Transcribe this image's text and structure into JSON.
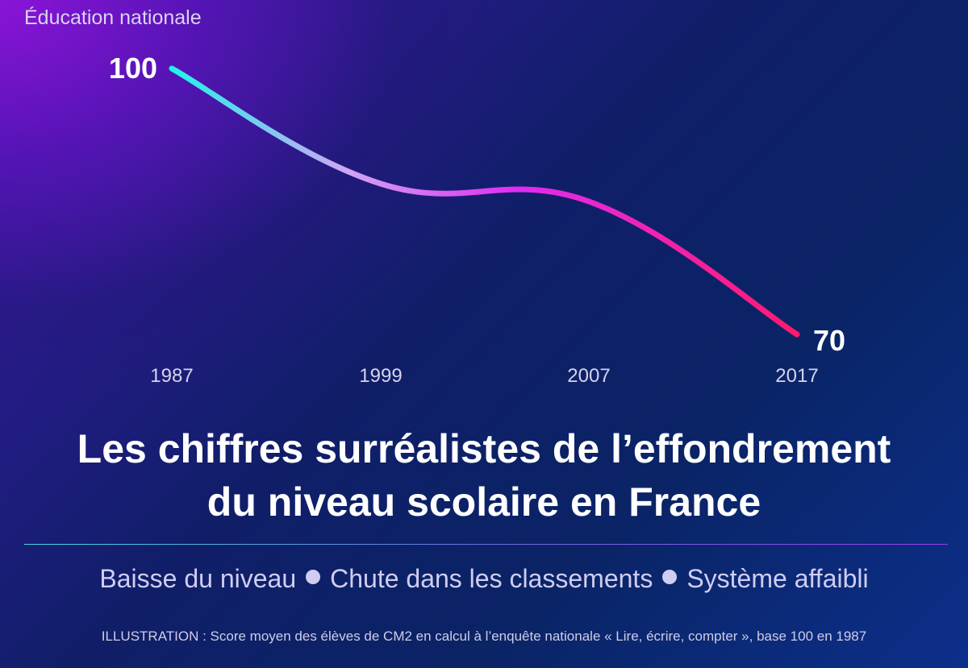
{
  "header": {
    "kicker": "Éducation nationale"
  },
  "chart_data": {
    "type": "line",
    "title": "",
    "xlabel": "",
    "ylabel": "",
    "categories": [
      "1987",
      "1999",
      "2007",
      "2017"
    ],
    "series": [
      {
        "values": [
          100,
          87,
          85,
          70
        ]
      }
    ],
    "data_labels": [
      "100",
      "70"
    ],
    "ylim": [
      70,
      100
    ],
    "grid": false,
    "gradient_colors": [
      "#22f2ea",
      "#cfa6f5",
      "#e02cf2",
      "#ff1a6e"
    ]
  },
  "headline": {
    "line1": "Les chiffres surréalistes de l’effondrement",
    "line2": "du niveau scolaire en France"
  },
  "tags": {
    "item1": "Baisse du niveau",
    "item2": "Chute dans les classements",
    "item3": "Système affaibli"
  },
  "caption": "ILLUSTRATION : Score moyen des élèves de CM2 en calcul à l’enquête nationale « Lire, écrire, compter », base 100 en 1987"
}
